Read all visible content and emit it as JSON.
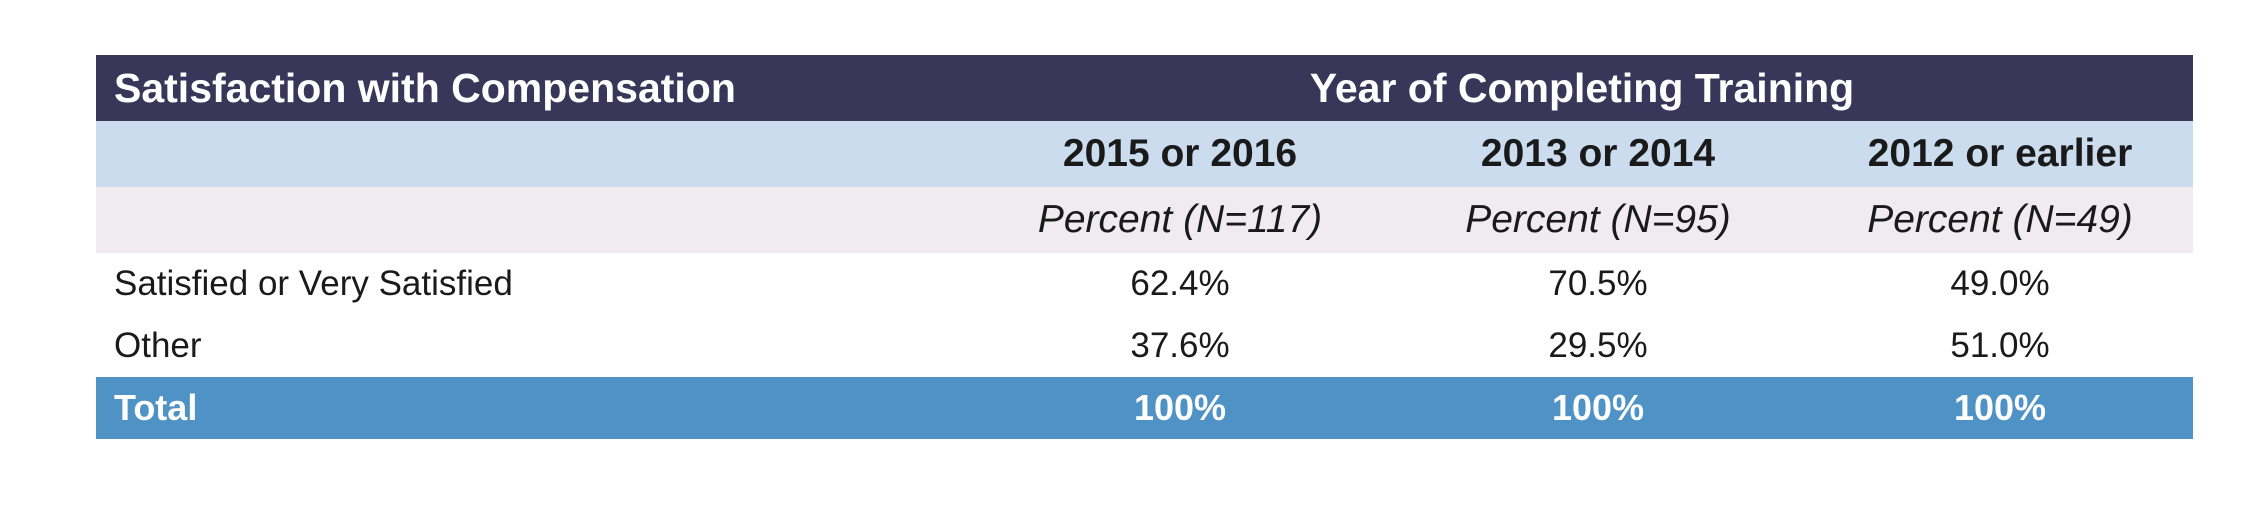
{
  "table": {
    "header": {
      "row_label": "Satisfaction with Compensation",
      "group_label": "Year of Completing Training"
    },
    "columns": [
      "2015 or 2016",
      "2013 or 2014",
      "2012 or earlier"
    ],
    "units": [
      "Percent (N=117)",
      "Percent (N=95)",
      "Percent (N=49)"
    ],
    "rows": [
      {
        "label": "Satisfied or Very Satisfied",
        "values": [
          "62.4%",
          "70.5%",
          "49.0%"
        ]
      },
      {
        "label": "Other",
        "values": [
          "37.6%",
          "29.5%",
          "51.0%"
        ]
      }
    ],
    "total": {
      "label": "Total",
      "values": [
        "100%",
        "100%",
        "100%"
      ]
    }
  },
  "colors": {
    "header_bg": "#393659",
    "subheader_bg": "#ccdcef",
    "unit_row_bg": "#f0ebee",
    "total_bg": "#4f93c6"
  }
}
